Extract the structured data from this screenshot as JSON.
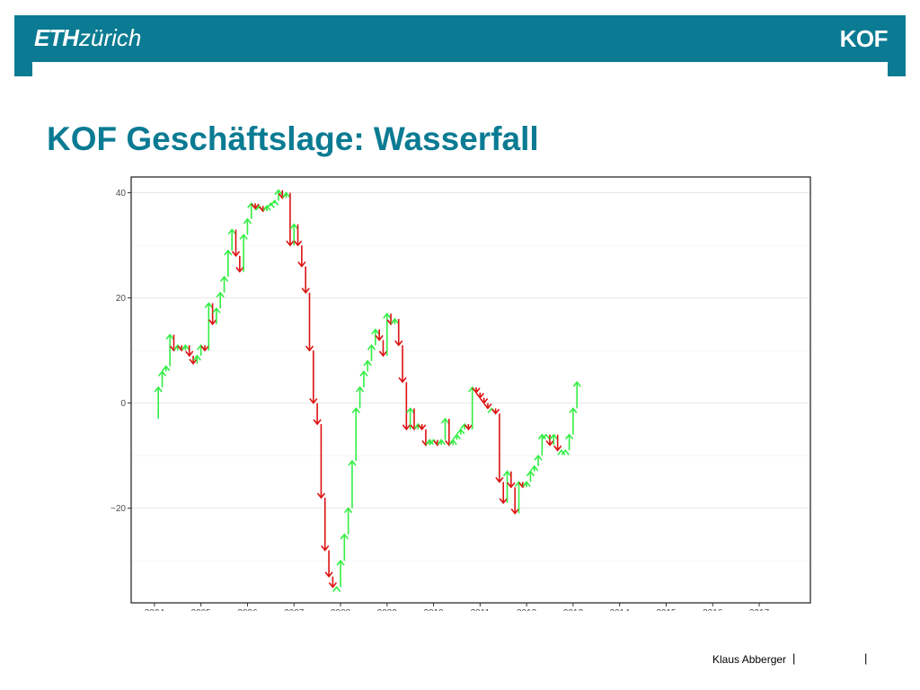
{
  "header": {
    "logo_eth": "ETH",
    "logo_zurich": "zürich",
    "logo_kof": "KOF"
  },
  "title": "KOF Geschäftslage: Wasserfall",
  "footer": {
    "author": "Klaus Abberger",
    "separator": "|"
  },
  "colors": {
    "brand": "#0b7b93",
    "up": "#33ee44",
    "down": "#dd1111"
  },
  "chart_data": {
    "type": "waterfall",
    "title": "",
    "xlabel": "",
    "ylabel": "",
    "xlim": [
      2003.5,
      2018.1
    ],
    "ylim": [
      -38,
      43
    ],
    "grid": true,
    "x_ticks": [
      2004,
      2005,
      2006,
      2007,
      2008,
      2009,
      2010,
      2011,
      2012,
      2013,
      2014,
      2015,
      2016,
      2017
    ],
    "y_ticks": [
      -20,
      0,
      20,
      40
    ],
    "y_tick_labels": [
      "−20",
      "0",
      "20",
      "40"
    ],
    "x_start": 2004.0,
    "x_step": 0.08333,
    "values": [
      -3,
      3,
      6,
      7,
      13,
      10,
      11,
      10,
      11,
      9,
      7.5,
      9,
      11,
      10,
      19,
      15,
      18,
      21,
      24,
      29,
      33,
      28,
      25,
      32,
      35,
      38,
      37,
      37.5,
      36.5,
      37.5,
      38,
      38.5,
      40.5,
      39,
      40,
      30,
      34,
      30,
      26,
      21,
      10,
      0,
      -4,
      -18,
      -28,
      -33,
      -35,
      -35,
      -30,
      -25,
      -20,
      -11,
      -1,
      3,
      6,
      8,
      11,
      14,
      12,
      9,
      17,
      15,
      16,
      11,
      4,
      -5,
      -1,
      -5,
      -4,
      -5,
      -8,
      -7,
      -7,
      -8,
      -7,
      -3,
      -8,
      -7,
      -6,
      -5,
      -4,
      -5,
      3,
      2,
      1,
      0,
      -1,
      -1,
      -2,
      -15,
      -19,
      -13,
      -16,
      -21,
      -15,
      -16,
      -15,
      -13,
      -12,
      -10,
      -6,
      -6,
      -8,
      -6,
      -9,
      -9,
      -9,
      -6,
      -1,
      4
    ]
  }
}
